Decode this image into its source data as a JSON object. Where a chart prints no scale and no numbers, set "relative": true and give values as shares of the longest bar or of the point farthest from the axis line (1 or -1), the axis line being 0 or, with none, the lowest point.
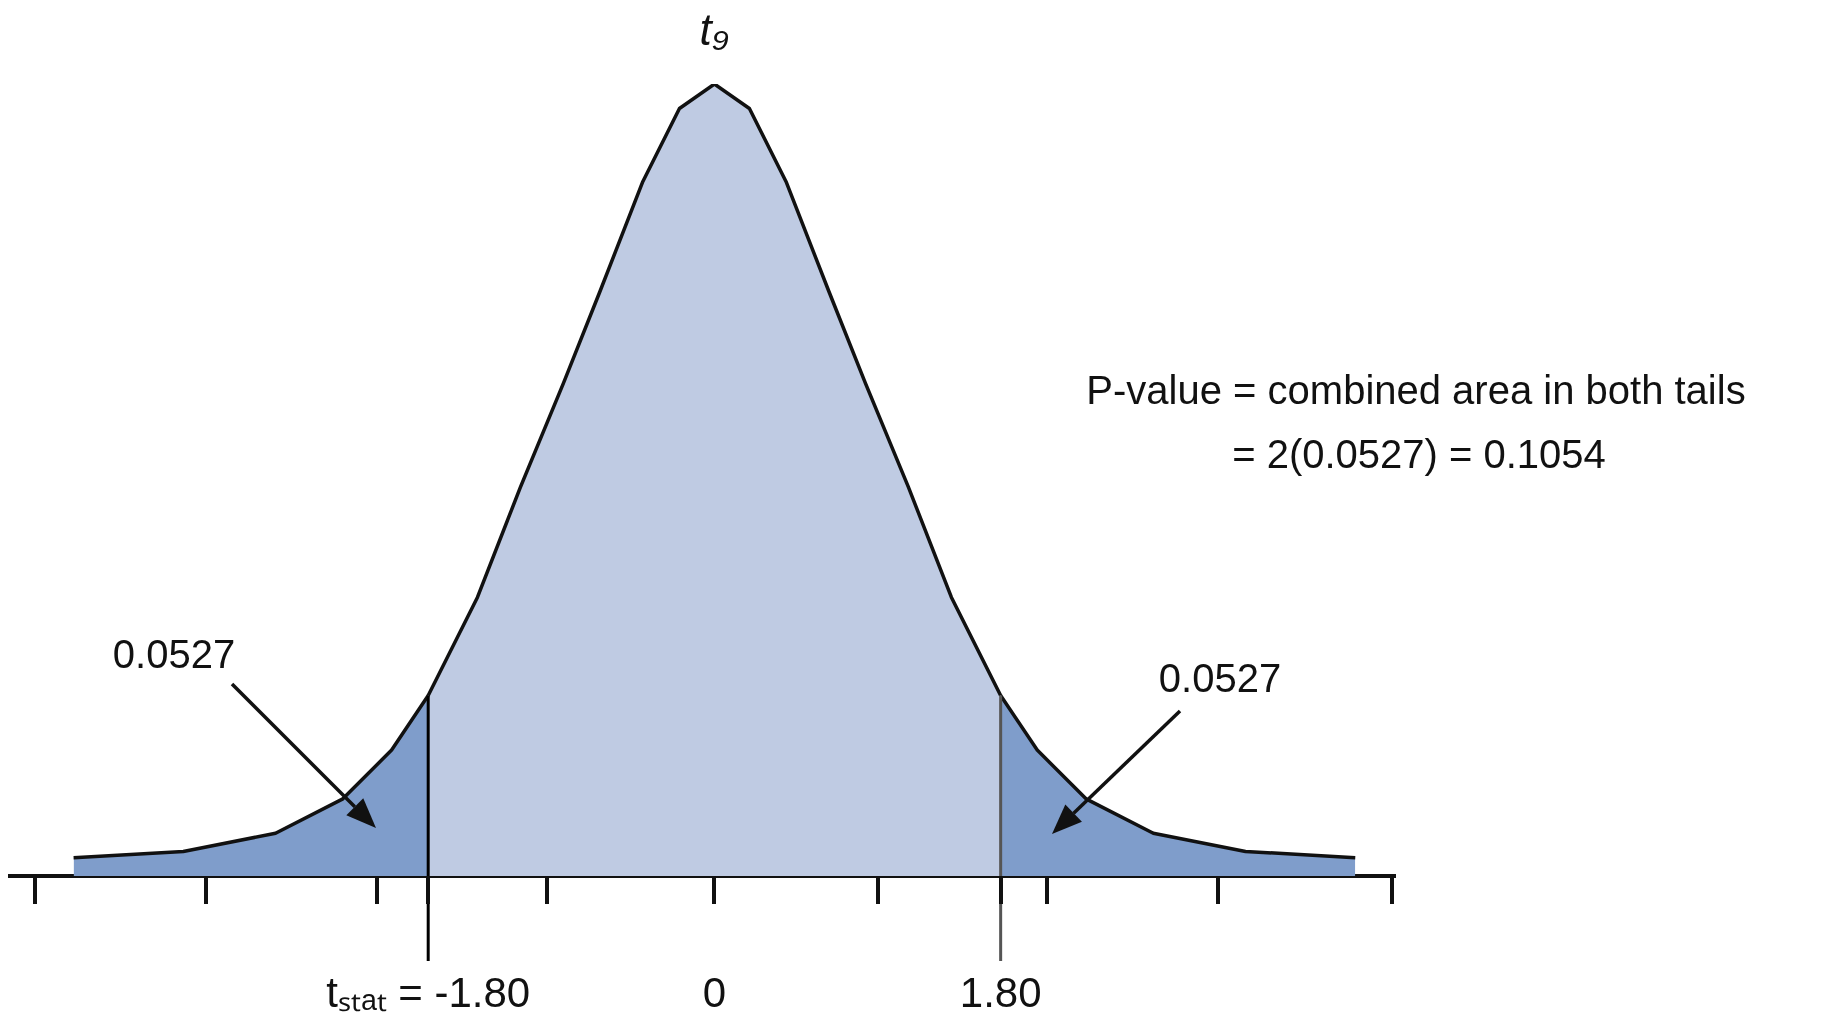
{
  "chart_data": {
    "type": "area",
    "title": "t₉",
    "relative": true,
    "grid": false,
    "legend": false,
    "marker": "none",
    "xlim": [
      -4.43,
      4.28
    ],
    "xticks": [
      {
        "value": -1.8,
        "label": "tₛₜₐₜ = -1.80"
      },
      0,
      {
        "value": 1.8,
        "label": "1.80"
      }
    ],
    "series": [
      {
        "color": "#7f9dcb",
        "x": [
          -4.03,
          -3.34,
          -2.76,
          -2.34,
          -2.03,
          -1.8
        ],
        "values": [
          0.023,
          0.031,
          0.054,
          0.097,
          0.159,
          0.228
        ]
      },
      {
        "color": "#bfcbe3",
        "x": [
          -1.8,
          -1.49,
          -1.22,
          -0.95,
          -0.72,
          -0.45,
          -0.22,
          0,
          0.22,
          0.45,
          0.72,
          0.95,
          1.22,
          1.49,
          1.8
        ],
        "values": [
          0.228,
          0.352,
          0.491,
          0.622,
          0.738,
          0.877,
          0.969,
          1,
          0.969,
          0.877,
          0.738,
          0.622,
          0.491,
          0.352,
          0.228
        ]
      },
      {
        "color": "#7f9dcb",
        "x": [
          1.8,
          2.03,
          2.34,
          2.76,
          3.34,
          4.03
        ],
        "values": [
          0.228,
          0.159,
          0.097,
          0.054,
          0.031,
          0.023
        ]
      }
    ],
    "ref_lines": [
      {
        "axis": "x",
        "value": -1.8,
        "color": "#000000"
      },
      {
        "axis": "x",
        "value": 1.8,
        "color": "#555555"
      }
    ],
    "annotations": [
      "0.0527",
      "0.0527",
      "P-value = combined area in both tails",
      "= 2(0.0527) = 0.1054"
    ]
  }
}
